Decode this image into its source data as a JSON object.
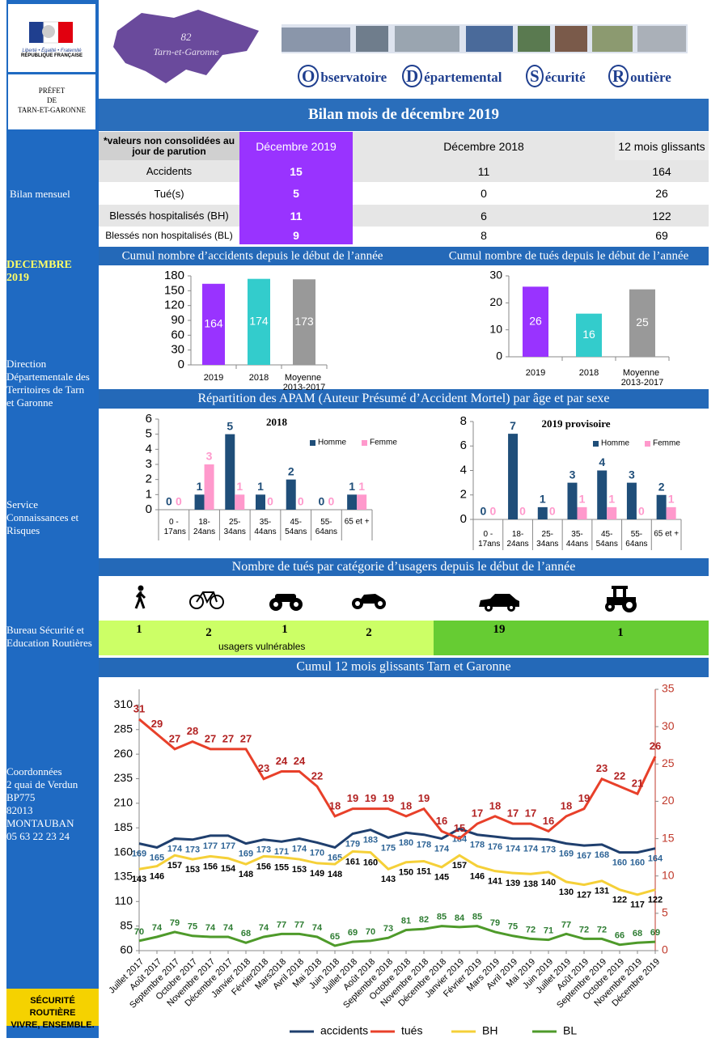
{
  "header": {
    "logo_motto": "Liberté • Égalité • Fraternité",
    "logo_republic": "RÉPUBLIQUE FRANÇAISE",
    "prefect": [
      "PRÉFET",
      "DE",
      "TARN-ET-GARONNE"
    ],
    "map_number": "82",
    "map_name": "Tarn-et-Garonne",
    "observatory": [
      "Observatoire",
      "Départemental",
      "Sécurité",
      "Routière"
    ]
  },
  "sidebar": {
    "bilan": "Bilan mensuel",
    "period": "DECEMBRE 2019",
    "org": "Direction Départementale des Territoires de Tarn et Garonne",
    "service": "Service Connaissances et  Risques",
    "bureau": "Bureau Sécurité et Education Routières",
    "contact": [
      "Coordonnées",
      "2 quai de Verdun",
      "BP775",
      "82013 MONTAUBAN",
      "05 63 22 23 24"
    ],
    "slogan": [
      "SÉCURITÉ ROUTIÈRE",
      "VIVRE, ENSEMBLE."
    ]
  },
  "title": "Bilan mois de décembre 2019",
  "table": {
    "header": [
      "*valeurs non consolidées au jour de parution",
      "Décembre 2019",
      "Décembre 2018",
      "12 mois glissants"
    ],
    "rows": [
      [
        "Accidents",
        15,
        11,
        164
      ],
      [
        "Tué(s)",
        5,
        0,
        26
      ],
      [
        "Blessés hospitalisés (BH)",
        11,
        6,
        122
      ],
      [
        "Blessés non hospitalisés (BL)",
        9,
        8,
        69
      ]
    ]
  },
  "apam_title": "Répartition des APAM (Auteur Présumé d’Accident Mortel) par âge et par sexe",
  "users": {
    "title": "Nombre de tués par catégorie d’usagers depuis le début de l’année",
    "values": [
      1,
      2,
      1,
      2,
      19,
      1
    ],
    "note": "usagers vulnérables"
  },
  "chart_data": [
    {
      "type": "bar",
      "title": "Cumul nombre d’accidents depuis le début de l’année",
      "categories": [
        "2019",
        "2018",
        "Moyenne 2013-2017"
      ],
      "values": [
        164,
        174,
        173
      ],
      "colors": [
        "#9933ff",
        "#33cccc",
        "#999999"
      ],
      "ylim": [
        0,
        180
      ],
      "yticks": [
        0,
        30,
        60,
        90,
        120,
        150,
        180
      ]
    },
    {
      "type": "bar",
      "title": "Cumul nombre de tués depuis le début de l’année",
      "categories": [
        "2019",
        "2018",
        "Moyenne 2013-2017"
      ],
      "values": [
        26,
        16,
        25
      ],
      "colors": [
        "#9933ff",
        "#33cccc",
        "#999999"
      ],
      "ylim": [
        0,
        30
      ],
      "yticks": [
        0,
        10,
        20,
        30
      ]
    },
    {
      "type": "grouped_bar",
      "title": "2018",
      "categories": [
        "0 - 17ans",
        "18-24ans",
        "25-34ans",
        "35-44ans",
        "45-54ans",
        "55-64ans",
        "65 et +"
      ],
      "series": [
        {
          "name": "Homme",
          "color": "#1f4e79",
          "values": [
            0,
            1,
            5,
            1,
            2,
            0,
            1
          ]
        },
        {
          "name": "Femme",
          "color": "#ff99cc",
          "values": [
            0,
            3,
            1,
            0,
            0,
            0,
            1
          ]
        }
      ],
      "ylim": [
        0,
        6
      ],
      "yticks": [
        0,
        1,
        2,
        3,
        4,
        5,
        6
      ]
    },
    {
      "type": "grouped_bar",
      "title": "2019 provisoire",
      "categories": [
        "0 - 17ans",
        "18-24ans",
        "25-34ans",
        "35-44ans",
        "45-54ans",
        "55-64ans",
        "65 et +"
      ],
      "series": [
        {
          "name": "Homme",
          "color": "#1f4e79",
          "values": [
            0,
            7,
            1,
            3,
            4,
            3,
            2
          ]
        },
        {
          "name": "Femme",
          "color": "#ff99cc",
          "values": [
            0,
            0,
            0,
            1,
            1,
            0,
            1
          ]
        }
      ],
      "ylim": [
        0,
        8
      ],
      "yticks": [
        0,
        2,
        4,
        6,
        8
      ]
    },
    {
      "type": "line",
      "title": "Cumul 12 mois glissants Tarn et Garonne",
      "categories": [
        "Juillet 2017",
        "Août 2017",
        "Septembre 2017",
        "Octobre 2017",
        "Novembre 2017",
        "Décembre 2017",
        "Janvier 2018",
        "Février2018",
        "Mars2018",
        "Avril 2018",
        "Mai 2018",
        "Juin 2018",
        "Juillet 2018",
        "Août 2018",
        "Septembre 2018",
        "Octobre 2018",
        "Novembre 2018",
        "Décembre 2018",
        "Janvier 2019",
        "Février 2019",
        "Mars 2019",
        "Avril 2019",
        "Mai 2019",
        "Juin 2019",
        "Juillet 2019",
        "Août 2019",
        "Septembre 2019",
        "Octobre 2019",
        "Novembre 2019",
        "Décembre 2019"
      ],
      "series": [
        {
          "name": "accidents",
          "color": "#1f3f6e",
          "values": [
            169,
            165,
            174,
            173,
            177,
            177,
            169,
            173,
            171,
            174,
            170,
            165,
            179,
            183,
            175,
            180,
            178,
            174,
            184,
            178,
            176,
            174,
            174,
            173,
            169,
            167,
            168,
            160,
            160,
            164
          ]
        },
        {
          "name": "tués",
          "color": "#e8402a",
          "axis": "y2",
          "values": [
            31,
            29,
            27,
            28,
            27,
            27,
            27,
            23,
            24,
            24,
            22,
            18,
            19,
            19,
            19,
            18,
            19,
            16,
            15,
            17,
            18,
            17,
            17,
            16,
            18,
            19,
            23,
            22,
            21,
            26
          ]
        },
        {
          "name": "BH",
          "color": "#f5d038",
          "values": [
            143,
            146,
            157,
            153,
            156,
            154,
            148,
            156,
            155,
            153,
            149,
            148,
            161,
            160,
            143,
            150,
            151,
            145,
            157,
            146,
            141,
            139,
            138,
            140,
            130,
            127,
            131,
            122,
            117,
            122
          ]
        },
        {
          "name": "BL",
          "color": "#4e9a2a",
          "values": [
            70,
            74,
            79,
            75,
            74,
            74,
            68,
            74,
            77,
            77,
            74,
            65,
            69,
            70,
            73,
            81,
            82,
            85,
            84,
            85,
            79,
            75,
            72,
            71,
            77,
            72,
            72,
            66,
            68,
            69
          ]
        }
      ],
      "ylim": [
        60,
        326
      ],
      "yticks": [
        60,
        85,
        110,
        135,
        160,
        185,
        210,
        235,
        260,
        285,
        310
      ],
      "y2lim": [
        0,
        35
      ],
      "y2ticks": [
        0,
        5,
        10,
        15,
        20,
        25,
        30,
        35
      ]
    }
  ]
}
